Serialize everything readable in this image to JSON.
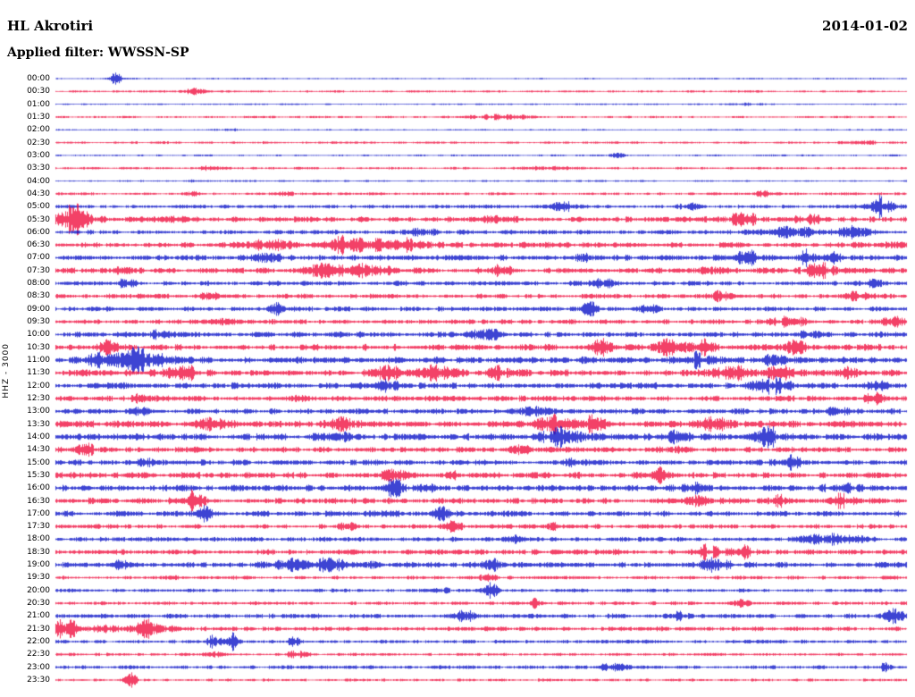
{
  "header": {
    "station": "HL Akrotiri",
    "date": "2014-01-02",
    "filter_label": "Applied filter: WWSSN-SP"
  },
  "axis": {
    "channel_label": "HHZ - 3000"
  },
  "colors": {
    "blue": "#0b14c8",
    "red": "#f01040",
    "text": "#000000",
    "background": "#ffffff"
  },
  "chart_data": {
    "type": "line",
    "subtype": "helicorder-seismogram",
    "title": "HL Akrotiri",
    "date": "2014-01-02",
    "filter": "WWSSN-SP",
    "channel": "HHZ",
    "scale": 3000,
    "row_interval_minutes": 30,
    "rows": [
      {
        "t": "00:00",
        "c": "blue",
        "base": 0.5,
        "events": [
          [
            0.071,
            8,
            4
          ]
        ]
      },
      {
        "t": "00:30",
        "c": "red",
        "base": 0.7,
        "events": [
          [
            0.161,
            20,
            1.5
          ]
        ]
      },
      {
        "t": "01:00",
        "c": "blue",
        "base": 0.5,
        "events": [
          [
            0.81,
            30,
            0.8
          ]
        ]
      },
      {
        "t": "01:30",
        "c": "red",
        "base": 0.7,
        "events": [
          [
            0.523,
            50,
            1.3
          ]
        ]
      },
      {
        "t": "02:00",
        "c": "blue",
        "base": 0.5,
        "events": [
          [
            0.2,
            20,
            0.7
          ]
        ]
      },
      {
        "t": "02:30",
        "c": "red",
        "base": 0.8,
        "events": [
          [
            0.943,
            30,
            1.0
          ]
        ]
      },
      {
        "t": "03:00",
        "c": "blue",
        "base": 0.6,
        "events": [
          [
            0.66,
            10,
            2.2
          ]
        ]
      },
      {
        "t": "03:30",
        "c": "red",
        "base": 0.8,
        "events": [
          [
            0.187,
            25,
            1.2
          ],
          [
            0.586,
            40,
            1.0
          ]
        ]
      },
      {
        "t": "04:00",
        "c": "blue",
        "base": 0.6,
        "events": [
          [
            0.161,
            8,
            1.0
          ]
        ]
      },
      {
        "t": "04:30",
        "c": "red",
        "base": 0.9,
        "events": [
          [
            0.161,
            10,
            1.5
          ],
          [
            0.271,
            15,
            1.2
          ],
          [
            0.833,
            15,
            1.5
          ]
        ]
      },
      {
        "t": "05:00",
        "c": "blue",
        "base": 1.2,
        "events": [
          [
            0.597,
            25,
            2.5
          ],
          [
            0.744,
            20,
            2.0
          ],
          [
            0.97,
            25,
            6.0
          ]
        ]
      },
      {
        "t": "05:30",
        "c": "red",
        "base": 1.8,
        "events": [
          [
            0.017,
            30,
            9.0
          ],
          [
            0.145,
            30,
            2.0
          ],
          [
            0.523,
            25,
            2.0
          ],
          [
            0.807,
            25,
            3.0
          ],
          [
            0.885,
            20,
            2.5
          ]
        ]
      },
      {
        "t": "06:00",
        "c": "blue",
        "base": 1.5,
        "events": [
          [
            0.428,
            30,
            2.0
          ],
          [
            0.859,
            40,
            3.5
          ],
          [
            0.938,
            30,
            4.5
          ]
        ]
      },
      {
        "t": "06:30",
        "c": "red",
        "base": 1.8,
        "events": [
          [
            0.25,
            30,
            3.0
          ],
          [
            0.344,
            35,
            5.0
          ],
          [
            0.397,
            40,
            5.5
          ],
          [
            0.98,
            20,
            3.0
          ]
        ]
      },
      {
        "t": "07:00",
        "c": "blue",
        "base": 1.8,
        "events": [
          [
            0.25,
            25,
            2.5
          ],
          [
            0.628,
            20,
            3.0
          ],
          [
            0.812,
            25,
            3.5
          ],
          [
            0.885,
            12,
            6.0
          ],
          [
            0.912,
            12,
            6.0
          ]
        ]
      },
      {
        "t": "07:30",
        "c": "red",
        "base": 1.8,
        "events": [
          [
            0.077,
            15,
            3.0
          ],
          [
            0.308,
            30,
            4.5
          ],
          [
            0.366,
            35,
            4.5
          ],
          [
            0.523,
            25,
            2.5
          ],
          [
            0.775,
            20,
            3.0
          ],
          [
            0.901,
            25,
            4.0
          ]
        ]
      },
      {
        "t": "08:00",
        "c": "blue",
        "base": 1.5,
        "events": [
          [
            0.082,
            15,
            2.0
          ],
          [
            0.649,
            25,
            2.5
          ],
          [
            0.964,
            20,
            2.0
          ]
        ]
      },
      {
        "t": "08:30",
        "c": "red",
        "base": 1.5,
        "events": [
          [
            0.176,
            20,
            2.0
          ],
          [
            0.78,
            20,
            3.5
          ],
          [
            0.943,
            20,
            2.0
          ]
        ]
      },
      {
        "t": "09:00",
        "c": "blue",
        "base": 1.5,
        "events": [
          [
            0.26,
            12,
            4.0
          ],
          [
            0.628,
            12,
            4.0
          ],
          [
            0.696,
            15,
            3.0
          ]
        ]
      },
      {
        "t": "09:30",
        "c": "red",
        "base": 1.5,
        "events": [
          [
            0.197,
            20,
            2.0
          ],
          [
            0.859,
            30,
            2.5
          ],
          [
            0.985,
            20,
            2.5
          ]
        ]
      },
      {
        "t": "10:00",
        "c": "blue",
        "base": 1.8,
        "events": [
          [
            0.124,
            20,
            2.0
          ],
          [
            0.507,
            20,
            3.0
          ],
          [
            0.885,
            20,
            2.5
          ]
        ]
      },
      {
        "t": "10:30",
        "c": "red",
        "base": 2.0,
        "events": [
          [
            0.061,
            20,
            3.5
          ],
          [
            0.639,
            20,
            4.0
          ],
          [
            0.723,
            25,
            4.5
          ],
          [
            0.765,
            20,
            3.5
          ],
          [
            0.87,
            20,
            4.5
          ]
        ]
      },
      {
        "t": "11:00",
        "c": "blue",
        "base": 2.2,
        "events": [
          [
            0.056,
            25,
            5.0
          ],
          [
            0.092,
            30,
            6.0
          ],
          [
            0.124,
            20,
            5.0
          ],
          [
            0.754,
            25,
            3.5
          ],
          [
            0.849,
            20,
            3.0
          ]
        ]
      },
      {
        "t": "11:30",
        "c": "red",
        "base": 2.2,
        "events": [
          [
            0.15,
            25,
            4.0
          ],
          [
            0.387,
            20,
            4.5
          ],
          [
            0.45,
            25,
            5.0
          ],
          [
            0.523,
            20,
            3.0
          ],
          [
            0.796,
            25,
            4.0
          ],
          [
            0.854,
            20,
            3.5
          ],
          [
            0.933,
            20,
            3.0
          ]
        ]
      },
      {
        "t": "12:00",
        "c": "blue",
        "base": 2.0,
        "events": [
          [
            0.387,
            20,
            3.0
          ],
          [
            0.838,
            30,
            4.5
          ],
          [
            0.964,
            20,
            3.0
          ]
        ]
      },
      {
        "t": "12:30",
        "c": "red",
        "base": 1.8,
        "events": [
          [
            0.103,
            15,
            2.5
          ],
          [
            0.292,
            20,
            2.0
          ],
          [
            0.964,
            15,
            3.0
          ]
        ]
      },
      {
        "t": "13:00",
        "c": "blue",
        "base": 1.8,
        "events": [
          [
            0.098,
            15,
            2.5
          ],
          [
            0.56,
            20,
            2.0
          ],
          [
            0.922,
            25,
            2.0
          ]
        ]
      },
      {
        "t": "13:30",
        "c": "red",
        "base": 2.2,
        "events": [
          [
            0.187,
            20,
            4.0
          ],
          [
            0.334,
            25,
            3.0
          ],
          [
            0.586,
            30,
            4.5
          ],
          [
            0.633,
            20,
            4.0
          ],
          [
            0.77,
            25,
            3.5
          ]
        ]
      },
      {
        "t": "14:00",
        "c": "blue",
        "base": 2.2,
        "events": [
          [
            0.329,
            25,
            4.0
          ],
          [
            0.597,
            30,
            5.0
          ],
          [
            0.728,
            20,
            4.0
          ],
          [
            0.838,
            25,
            4.5
          ]
        ]
      },
      {
        "t": "14:30",
        "c": "red",
        "base": 1.8,
        "events": [
          [
            0.035,
            15,
            3.0
          ],
          [
            0.549,
            20,
            2.5
          ],
          [
            0.728,
            15,
            2.5
          ]
        ]
      },
      {
        "t": "15:00",
        "c": "blue",
        "base": 1.8,
        "events": [
          [
            0.113,
            15,
            3.0
          ],
          [
            0.607,
            20,
            2.0
          ],
          [
            0.864,
            20,
            3.5
          ]
        ]
      },
      {
        "t": "15:30",
        "c": "red",
        "base": 2.0,
        "events": [
          [
            0.397,
            20,
            3.0
          ],
          [
            0.465,
            15,
            2.5
          ],
          [
            0.712,
            20,
            3.5
          ]
        ]
      },
      {
        "t": "16:00",
        "c": "blue",
        "base": 2.0,
        "events": [
          [
            0.397,
            18,
            5.0
          ],
          [
            0.434,
            15,
            4.0
          ],
          [
            0.749,
            20,
            3.0
          ],
          [
            0.922,
            20,
            2.5
          ]
        ]
      },
      {
        "t": "16:30",
        "c": "red",
        "base": 2.0,
        "events": [
          [
            0.161,
            14,
            5.0
          ],
          [
            0.754,
            20,
            3.0
          ],
          [
            0.854,
            15,
            2.5
          ],
          [
            0.922,
            18,
            3.5
          ]
        ]
      },
      {
        "t": "17:00",
        "c": "blue",
        "base": 1.8,
        "events": [
          [
            0.176,
            10,
            4.0
          ],
          [
            0.397,
            15,
            2.5
          ],
          [
            0.455,
            15,
            4.5
          ]
        ]
      },
      {
        "t": "17:30",
        "c": "red",
        "base": 1.5,
        "events": [
          [
            0.344,
            10,
            3.0
          ],
          [
            0.465,
            15,
            3.0
          ],
          [
            0.586,
            15,
            1.5
          ]
        ]
      },
      {
        "t": "18:00",
        "c": "blue",
        "base": 1.5,
        "events": [
          [
            0.539,
            15,
            2.5
          ],
          [
            0.912,
            45,
            3.0
          ]
        ]
      },
      {
        "t": "18:30",
        "c": "red",
        "base": 1.8,
        "events": [
          [
            0.765,
            20,
            3.5
          ],
          [
            0.807,
            15,
            3.0
          ]
        ]
      },
      {
        "t": "19:00",
        "c": "blue",
        "base": 1.8,
        "events": [
          [
            0.077,
            12,
            2.5
          ],
          [
            0.308,
            80,
            3.0
          ],
          [
            0.513,
            12,
            2.5
          ],
          [
            0.775,
            20,
            3.5
          ]
        ]
      },
      {
        "t": "19:30",
        "c": "red",
        "base": 1.2,
        "events": [
          [
            0.134,
            15,
            2.0
          ],
          [
            0.507,
            12,
            2.5
          ]
        ]
      },
      {
        "t": "20:00",
        "c": "blue",
        "base": 1.2,
        "events": [
          [
            0.45,
            12,
            2.0
          ],
          [
            0.513,
            10,
            6.0
          ]
        ]
      },
      {
        "t": "20:30",
        "c": "red",
        "base": 1.2,
        "events": [
          [
            0.565,
            10,
            3.5
          ],
          [
            0.807,
            15,
            2.0
          ]
        ]
      },
      {
        "t": "21:00",
        "c": "blue",
        "base": 1.5,
        "events": [
          [
            0.481,
            12,
            4.0
          ],
          [
            0.733,
            15,
            2.0
          ],
          [
            0.985,
            15,
            4.0
          ]
        ]
      },
      {
        "t": "21:30",
        "c": "red",
        "base": 1.5,
        "events": [
          [
            0.014,
            20,
            7.0
          ],
          [
            0.061,
            20,
            4.0
          ],
          [
            0.108,
            30,
            5.0
          ]
        ]
      },
      {
        "t": "22:00",
        "c": "blue",
        "base": 1.2,
        "events": [
          [
            0.187,
            10,
            5.0
          ],
          [
            0.206,
            10,
            5.0
          ],
          [
            0.282,
            15,
            2.0
          ]
        ]
      },
      {
        "t": "22:30",
        "c": "red",
        "base": 1.0,
        "events": [
          [
            0.187,
            20,
            1.5
          ],
          [
            0.282,
            15,
            1.5
          ]
        ]
      },
      {
        "t": "23:00",
        "c": "blue",
        "base": 1.2,
        "events": [
          [
            0.66,
            25,
            2.5
          ],
          [
            0.975,
            15,
            2.0
          ]
        ]
      },
      {
        "t": "23:30",
        "c": "red",
        "base": 0.9,
        "events": [
          [
            0.087,
            10,
            6.0
          ]
        ]
      }
    ]
  }
}
